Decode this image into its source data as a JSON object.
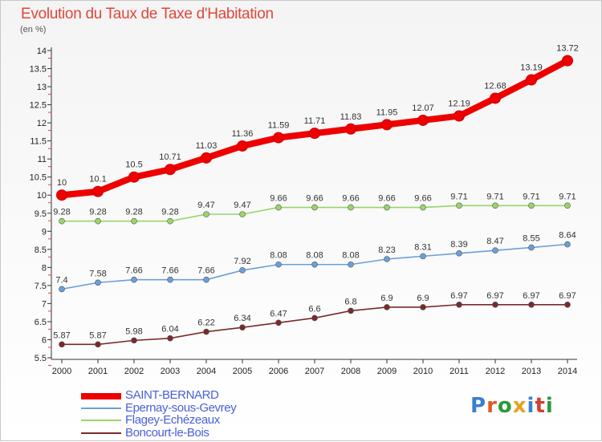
{
  "header": {
    "title": "Evolution du Taux de Taxe d'Habitation",
    "subtitle": "(en %)"
  },
  "brand": {
    "text": "Proxiti",
    "letter_colors": [
      "#3a7fd0",
      "#e05a2a",
      "#2a9a3a",
      "#e8a020",
      "#3a7fd0",
      "#d04030",
      "#2a9a3a"
    ]
  },
  "chart_data": {
    "type": "line",
    "title": "Evolution du Taux de Taxe d'Habitation",
    "ylabel": "(en %)",
    "xlabel": "",
    "x": [
      "2000",
      "2001",
      "2002",
      "2003",
      "2004",
      "2005",
      "2006",
      "2007",
      "2008",
      "2009",
      "2010",
      "2011",
      "2012",
      "2013",
      "2014"
    ],
    "ylim": [
      5.5,
      14
    ],
    "yticks": [
      "5.5",
      "6",
      "6.5",
      "7",
      "7.5",
      "8",
      "8.5",
      "9",
      "9.5",
      "10",
      "10.5",
      "11",
      "11.5",
      "12",
      "12.5",
      "13",
      "13.5",
      "14"
    ],
    "grid": false,
    "legend_position": "bottom-left",
    "series": [
      {
        "name": "SAINT-BERNARD",
        "color": "#ee0000",
        "values": [
          10,
          10.1,
          10.5,
          10.71,
          11.03,
          11.36,
          11.59,
          11.71,
          11.83,
          11.95,
          12.07,
          12.19,
          12.68,
          13.19,
          13.72
        ],
        "labels": [
          "10",
          "10.1",
          "10.5",
          "10.71",
          "11.03",
          "11.36",
          "11.59",
          "11.71",
          "11.83",
          "11.95",
          "12.07",
          "12.19",
          "12.68",
          "13.19",
          "13.72"
        ]
      },
      {
        "name": "Epernay-sous-Gevrey",
        "color": "#6aa0d8",
        "values": [
          7.4,
          7.58,
          7.66,
          7.66,
          7.66,
          7.92,
          8.08,
          8.08,
          8.08,
          8.23,
          8.31,
          8.39,
          8.47,
          8.55,
          8.64
        ],
        "labels": [
          "7.4",
          "7.58",
          "7.66",
          "7.66",
          "7.66",
          "7.92",
          "8.08",
          "8.08",
          "8.08",
          "8.23",
          "8.31",
          "8.39",
          "8.47",
          "8.55",
          "8.64"
        ]
      },
      {
        "name": "Flagey-Echézeaux",
        "color": "#9ad46a",
        "values": [
          9.28,
          9.28,
          9.28,
          9.28,
          9.47,
          9.47,
          9.66,
          9.66,
          9.66,
          9.66,
          9.66,
          9.71,
          9.71,
          9.71,
          9.71
        ],
        "labels": [
          "9.28",
          "9.28",
          "9.28",
          "9.28",
          "9.47",
          "9.47",
          "9.66",
          "9.66",
          "9.66",
          "9.66",
          "9.66",
          "9.71",
          "9.71",
          "9.71",
          "9.71"
        ]
      },
      {
        "name": "Boncourt-le-Bois",
        "color": "#7a2a2a",
        "values": [
          5.87,
          5.87,
          5.98,
          6.04,
          6.22,
          6.34,
          6.47,
          6.6,
          6.8,
          6.9,
          6.9,
          6.97,
          6.97,
          6.97,
          6.97
        ],
        "labels": [
          "5.87",
          "5.87",
          "5.98",
          "6.04",
          "6.22",
          "6.34",
          "6.47",
          "6.6",
          "6.8",
          "6.9",
          "6.9",
          "6.97",
          "6.97",
          "6.97",
          "6.97"
        ]
      }
    ]
  }
}
